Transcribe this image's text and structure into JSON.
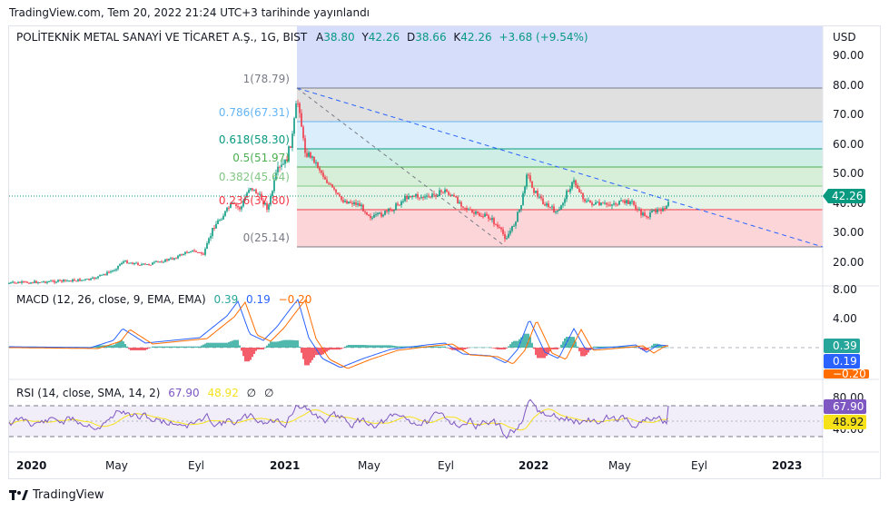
{
  "header": {
    "published": "TradingView.com, Tem 20, 2022 21:24 UTC+3 tarihinde yayınlandı"
  },
  "symbol": {
    "name": "POLİTEKNİK METAL SANAYİ VE TİCARET A.Ş., 1G, BIST",
    "o_label": "A",
    "o": "38.80",
    "h_label": "Y",
    "h": "42.26",
    "l_label": "D",
    "l": "38.66",
    "c_label": "K",
    "c": "42.26",
    "change": "+3.68 (+9.54%)"
  },
  "price_axis": {
    "currency": "USD",
    "ticks": [
      "90.00",
      "80.00",
      "70.00",
      "60.00",
      "50.00",
      "40.00",
      "30.00",
      "20.00"
    ],
    "last_price": "42.26"
  },
  "fibonacci": [
    {
      "label": "1(78.79)",
      "color": "#787b86"
    },
    {
      "label": "0.786(67.31)",
      "color": "#64b5f6"
    },
    {
      "label": "0.618(58.30)",
      "color": "#089981"
    },
    {
      "label": "0.5(51.97)",
      "color": "#4caf50"
    },
    {
      "label": "0.382(45.64)",
      "color": "#81c784"
    },
    {
      "label": "0.236(37.80)",
      "color": "#f23645"
    },
    {
      "label": "0(25.14)",
      "color": "#787b86"
    }
  ],
  "macd": {
    "title": "MACD (12, 26, close, 9, EMA, EMA)",
    "hist": "0.39",
    "macd": "0.19",
    "signal": "−0.20",
    "axis_ticks": [
      "8.00",
      "4.00"
    ],
    "tag_hist": "0.39",
    "tag_macd": "0.19",
    "tag_signal": "−0.20",
    "colors": {
      "hist": "#26a69a",
      "macd": "#2962ff",
      "signal": "#ff6d00"
    }
  },
  "rsi": {
    "title": "RSI (14, close, SMA, 14, 2)",
    "value": "67.90",
    "ma": "48.92",
    "extra1": "∅",
    "extra2": "∅",
    "axis_ticks": [
      "80.00",
      "40.00"
    ],
    "tag_rsi": "67.90",
    "tag_ma": "48.92",
    "colors": {
      "rsi": "#7e57c2",
      "ma": "#f7e21a"
    }
  },
  "time_axis": [
    "2020",
    "May",
    "Eyl",
    "2021",
    "May",
    "Eyl",
    "2022",
    "May",
    "Eyl",
    "2023"
  ],
  "footer": {
    "brand": "TradingView"
  },
  "colors": {
    "up": "#089981",
    "down": "#f23645",
    "price_tag": "#089981"
  }
}
